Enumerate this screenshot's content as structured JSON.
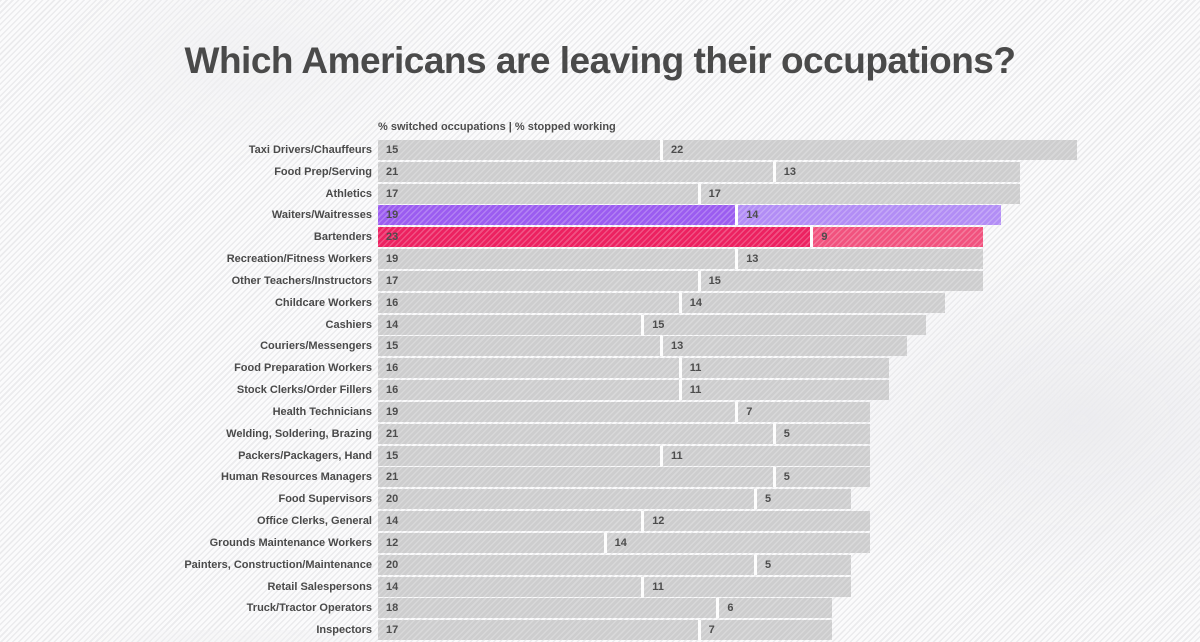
{
  "title": "Which Americans are leaving their occupations?",
  "legend": "% switched occupations | % stopped working",
  "colors": {
    "background": "#fbfbfc",
    "stripe": "#ebebed",
    "bar_default": "#cdcdce",
    "text_dark": "#4a4a4a",
    "value_text": "#4d4d4d",
    "highlight_purple_main": "#9b5cf0",
    "highlight_purple_light": "#b28df5",
    "highlight_pink_main": "#ec2160",
    "highlight_pink_light": "#f1527e"
  },
  "chart_data": {
    "type": "bar",
    "orientation": "horizontal",
    "stacked": true,
    "unit": "percent",
    "title": "Which Americans are leaving their occupations?",
    "legend_text": "% switched occupations | % stopped working",
    "legend_position": "top-left of plot area",
    "grid": false,
    "axis_labels_hidden": true,
    "categories": [
      "Taxi Drivers/Chauffeurs",
      "Food Prep/Serving",
      "Athletics",
      "Waiters/Waitresses",
      "Bartenders",
      "Recreation/Fitness Workers",
      "Other Teachers/Instructors",
      "Childcare Workers",
      "Cashiers",
      "Couriers/Messengers",
      "Food Preparation Workers",
      "Stock Clerks/Order Fillers",
      "Health Technicians",
      "Welding, Soldering, Brazing",
      "Packers/Packagers, Hand",
      "Human Resources Managers",
      "Food Supervisors",
      "Office Clerks, General",
      "Grounds Maintenance Workers",
      "Painters, Construction/Maintenance",
      "Retail Salespersons",
      "Truck/Tractor Operators",
      "Inspectors"
    ],
    "series": [
      {
        "name": "% switched occupations",
        "values": [
          15,
          21,
          17,
          19,
          23,
          19,
          17,
          16,
          14,
          15,
          16,
          16,
          19,
          21,
          15,
          21,
          20,
          14,
          12,
          20,
          14,
          18,
          17
        ]
      },
      {
        "name": "% stopped working",
        "values": [
          22,
          13,
          17,
          14,
          9,
          13,
          15,
          14,
          15,
          13,
          11,
          11,
          7,
          5,
          11,
          5,
          5,
          12,
          14,
          5,
          11,
          6,
          7
        ]
      }
    ],
    "highlight_rows": {
      "3": {
        "category": "Waiters/Waitresses",
        "seg1": "#9b5cf0",
        "seg2": "#b28df5"
      },
      "4": {
        "category": "Bartenders",
        "seg1": "#ec2160",
        "seg2": "#f1527e"
      }
    },
    "notes": "Last row (Inspectors) is cropped by the bottom edge of the image."
  }
}
